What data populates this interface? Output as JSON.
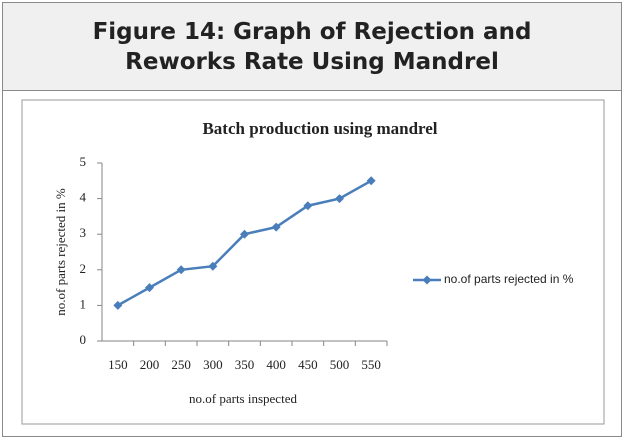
{
  "header": {
    "title": "Figure 14: Graph of Rejection and Reworks Rate Using Mandrel"
  },
  "chart_data": {
    "type": "line",
    "title": "Batch production using mandrel",
    "x_label": "no.of parts inspected",
    "y_label": "no.of parts rejected in %",
    "categories": [
      150,
      200,
      250,
      300,
      350,
      400,
      450,
      500,
      550
    ],
    "series": [
      {
        "name": "no.of parts rejected in %",
        "color": "#4a7ebb",
        "values": [
          1,
          1.5,
          2,
          2.1,
          3,
          3.2,
          3.8,
          4,
          4.5
        ]
      }
    ],
    "ylim": [
      0,
      5
    ],
    "yticks": [
      0,
      1,
      2,
      3,
      4,
      5
    ],
    "grid": false,
    "legend": "right"
  }
}
